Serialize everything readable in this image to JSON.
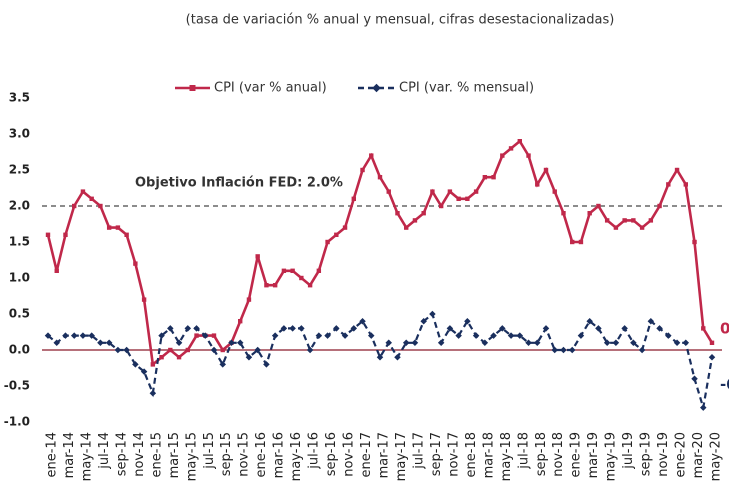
{
  "chart_data": {
    "type": "line",
    "subtitle": "(tasa de variación % anual y mensual, cifras desestacionalizadas)",
    "categories": [
      "ene-14",
      null,
      "mar-14",
      null,
      "may-14",
      null,
      "jul-14",
      null,
      "sep-14",
      null,
      "nov-14",
      null,
      "ene-15",
      null,
      "mar-15",
      null,
      "may-15",
      null,
      "jul-15",
      null,
      "sep-15",
      null,
      "nov-15",
      null,
      "ene-16",
      null,
      "mar-16",
      null,
      "may-16",
      null,
      "jul-16",
      null,
      "sep-16",
      null,
      "nov-16",
      null,
      "ene-17",
      null,
      "mar-17",
      null,
      "may-17",
      null,
      "jul-17",
      null,
      "sep-17",
      null,
      "nov-17",
      null,
      "ene-18",
      null,
      "mar-18",
      null,
      "may-18",
      null,
      "jul-18",
      null,
      "sep-18",
      null,
      "nov-18",
      null,
      "ene-19",
      null,
      "mar-19",
      null,
      "may-19",
      null,
      "jul-19",
      null,
      "sep-19",
      null,
      "nov-19",
      null,
      "ene-20",
      null,
      "mar-20",
      null,
      "may-20"
    ],
    "series": [
      {
        "name": "CPI (var % anual)",
        "color": "#c0284a",
        "dash": false,
        "marker": "square",
        "values": [
          1.6,
          1.1,
          1.6,
          2.0,
          2.2,
          2.1,
          2.0,
          1.7,
          1.7,
          1.6,
          1.2,
          0.7,
          -0.2,
          -0.1,
          0.0,
          -0.1,
          0.0,
          0.2,
          0.2,
          0.2,
          0.0,
          0.1,
          0.4,
          0.7,
          1.3,
          0.9,
          0.9,
          1.1,
          1.1,
          1.0,
          0.9,
          1.1,
          1.5,
          1.6,
          1.7,
          2.1,
          2.5,
          2.7,
          2.4,
          2.2,
          1.9,
          1.7,
          1.8,
          1.9,
          2.2,
          2.0,
          2.2,
          2.1,
          2.1,
          2.2,
          2.4,
          2.4,
          2.7,
          2.8,
          2.9,
          2.7,
          2.3,
          2.5,
          2.2,
          1.9,
          1.5,
          1.5,
          1.9,
          2.0,
          1.8,
          1.7,
          1.8,
          1.8,
          1.7,
          1.8,
          2.0,
          2.3,
          2.5,
          2.3,
          1.5,
          0.3,
          0.1
        ]
      },
      {
        "name": "CPI (var. % mensual)",
        "color": "#1a2f5e",
        "dash": true,
        "marker": "diamond",
        "values": [
          0.2,
          0.1,
          0.2,
          0.2,
          0.2,
          0.2,
          0.1,
          0.1,
          0.0,
          0.0,
          -0.2,
          -0.3,
          -0.6,
          0.2,
          0.3,
          0.1,
          0.3,
          0.3,
          0.2,
          0.0,
          -0.2,
          0.1,
          0.1,
          -0.1,
          0.0,
          -0.2,
          0.2,
          0.3,
          0.3,
          0.3,
          0.0,
          0.2,
          0.2,
          0.3,
          0.2,
          0.3,
          0.4,
          0.2,
          -0.1,
          0.1,
          -0.1,
          0.1,
          0.1,
          0.4,
          0.5,
          0.1,
          0.3,
          0.2,
          0.4,
          0.2,
          0.1,
          0.2,
          0.3,
          0.2,
          0.2,
          0.1,
          0.1,
          0.3,
          0.0,
          0.0,
          0.0,
          0.2,
          0.4,
          0.3,
          0.1,
          0.1,
          0.3,
          0.1,
          0.0,
          0.4,
          0.3,
          0.2,
          0.1,
          0.1,
          -0.4,
          -0.8,
          -0.1
        ]
      }
    ],
    "label_last": true,
    "reference_line": {
      "value": 2.0,
      "label": "Objetivo Inflación FED: 2.0%",
      "color": "#8c8c8c"
    },
    "zero_line_color": "#8b1a2b",
    "ylim": [
      -1.0,
      3.5
    ],
    "yticks": [
      {
        "value": -1.0,
        "label": "-1.0"
      },
      -0.5,
      {
        "value": 0,
        "label": "0.0"
      },
      0.5,
      {
        "value": 1.0,
        "label": "1.0"
      },
      1.5,
      {
        "value": 2.0,
        "label": "2.0"
      },
      2.5,
      {
        "value": 3.0,
        "label": "3.0"
      },
      3.5
    ],
    "grid": false
  }
}
